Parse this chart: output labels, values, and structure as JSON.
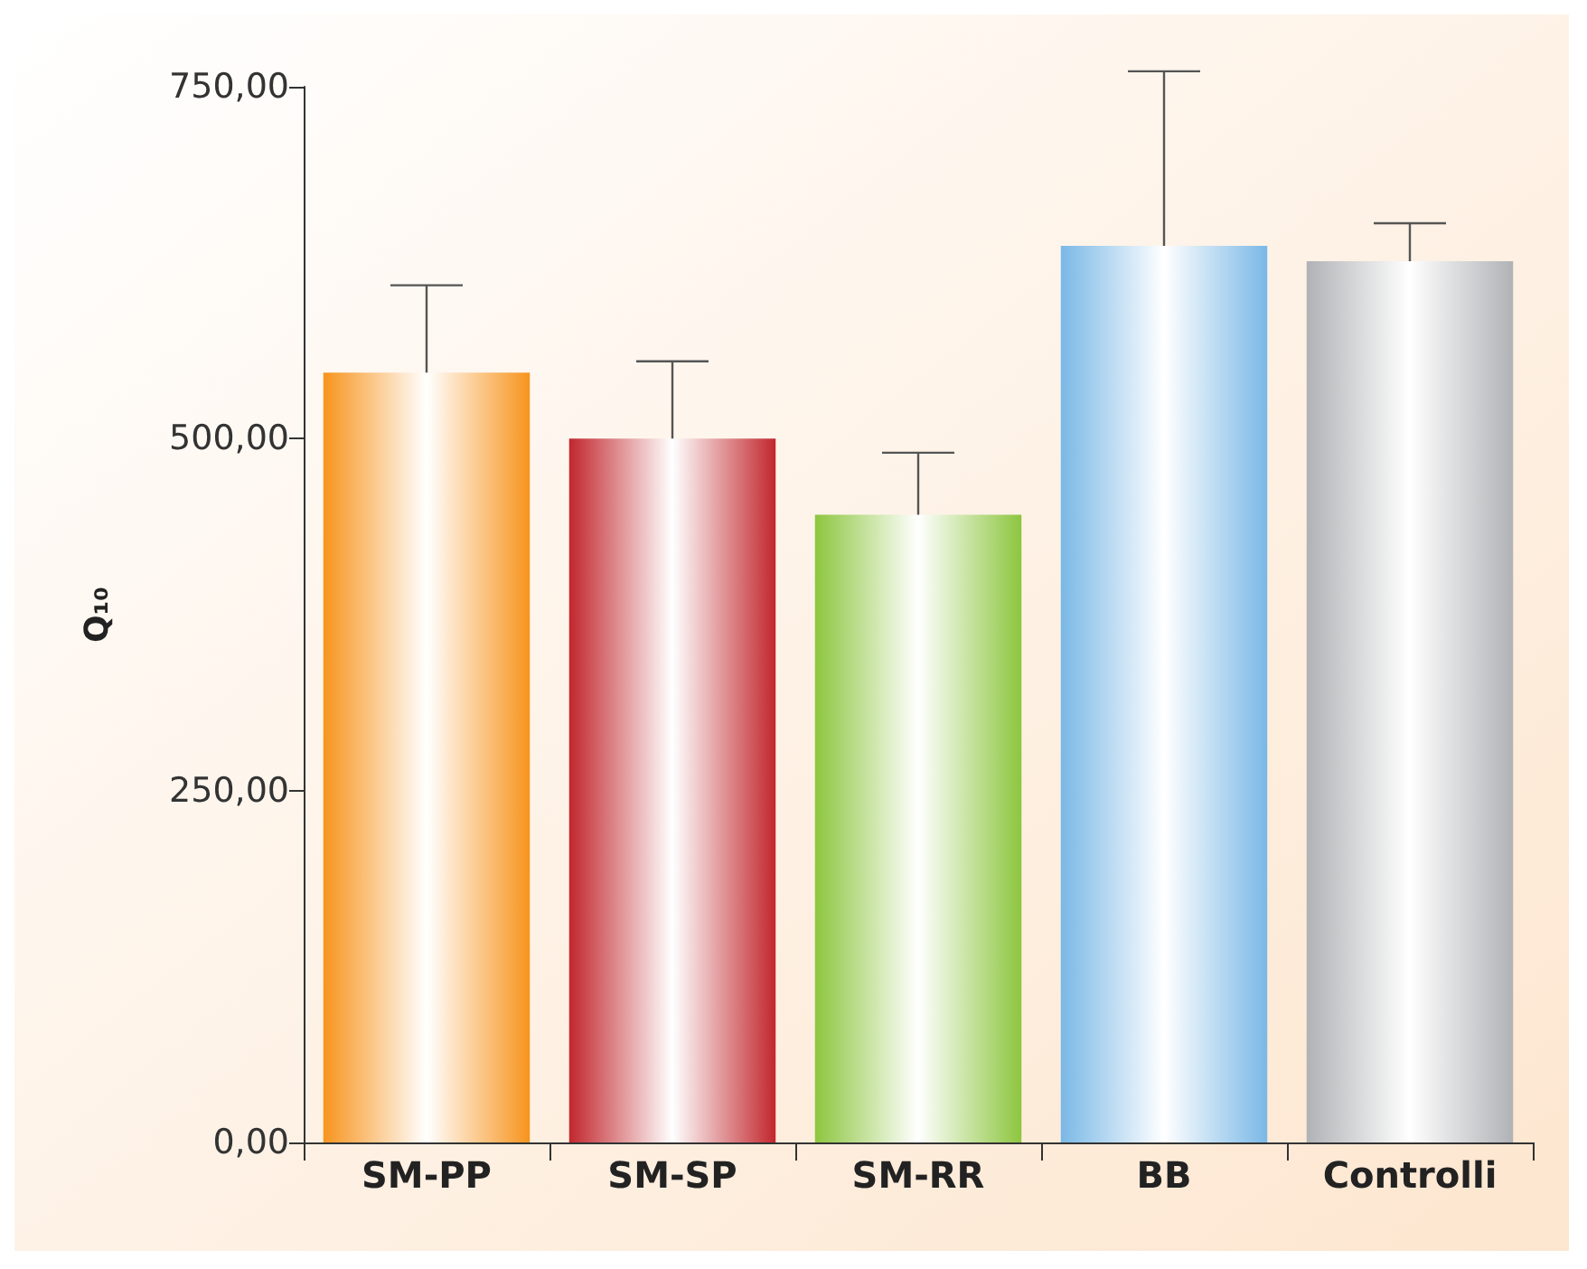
{
  "chart_data": {
    "type": "bar",
    "ylabel": "Q₁₀",
    "categories": [
      "SM-PP",
      "SM-SP",
      "SM-RR",
      "BB",
      "Controlli"
    ],
    "values": [
      547,
      500,
      446,
      637,
      626
    ],
    "errors": [
      62,
      55,
      44,
      124,
      27
    ],
    "colors": [
      "#f7941d",
      "#c1272d",
      "#8dc63f",
      "#7ab8e6",
      "#b0b2b5"
    ],
    "ylim": [
      0,
      750
    ],
    "yticks": [
      {
        "value": 0,
        "label": "0,00"
      },
      {
        "value": 250,
        "label": "250,00"
      },
      {
        "value": 500,
        "label": "500,00"
      },
      {
        "value": 750,
        "label": "750,00"
      }
    ],
    "grid": false
  }
}
